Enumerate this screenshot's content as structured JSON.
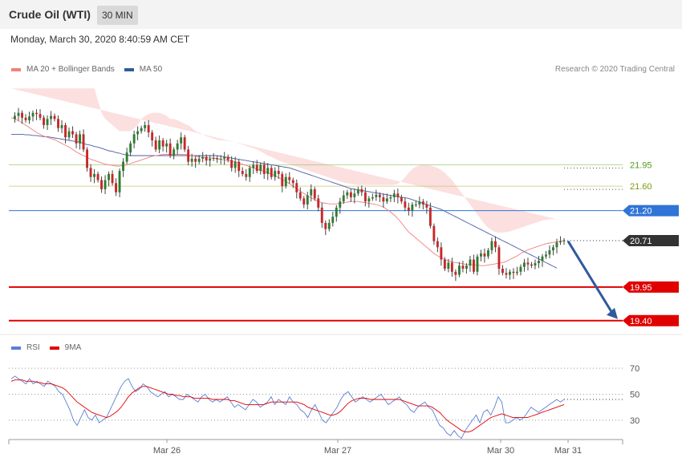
{
  "header": {
    "title": "Crude Oil (WTI)",
    "timeframe": "30 MIN",
    "datetime": "Monday, March 30, 2020 8:40:59 AM CET"
  },
  "legend_main": [
    {
      "label": "MA 20 + Bollinger Bands",
      "color": "#f08080"
    },
    {
      "label": "MA 50",
      "color": "#2f5a9e"
    }
  ],
  "legend_rsi": [
    {
      "label": "RSI",
      "color": "#5b7fd6"
    },
    {
      "label": "9MA",
      "color": "#e00000"
    }
  ],
  "credit": "Research © 2020 Trading Central",
  "colors": {
    "up": "#2e7d32",
    "down": "#c62828",
    "band": "#fbd7d7",
    "ma20": "#f08080",
    "ma50": "#4a5fa5",
    "rsi": "#5b7fd6",
    "rsima": "#e00000",
    "arrow": "#2f5a9e"
  },
  "chart_data": [
    {
      "type": "candlestick",
      "title": "Crude Oil (WTI)",
      "ylim": [
        19.2,
        23.4
      ],
      "x_ticks": [
        "Mar 26",
        "Mar 27",
        "Mar 30",
        "Mar 31"
      ],
      "levels": [
        {
          "label": "21.95",
          "value": 21.95,
          "style": "resistance-light",
          "color": "#9bc86a"
        },
        {
          "label": "21.60",
          "value": 21.6,
          "style": "resistance-light",
          "color": "#c9c26a"
        },
        {
          "label": "21.20",
          "value": 21.2,
          "style": "pivot",
          "color": "#2f74d6"
        },
        {
          "label": "20.71",
          "value": 20.71,
          "style": "current-price",
          "color": "#333333"
        },
        {
          "label": "19.95",
          "value": 19.95,
          "style": "support",
          "color": "#e00000"
        },
        {
          "label": "19.40",
          "value": 19.4,
          "style": "support",
          "color": "#e00000"
        }
      ],
      "forecast_arrow": {
        "from": 20.7,
        "to": 19.4
      },
      "series": {
        "close": [
          22.7,
          22.75,
          22.8,
          22.72,
          22.68,
          22.74,
          22.8,
          22.78,
          22.72,
          22.6,
          22.7,
          22.75,
          22.7,
          22.55,
          22.6,
          22.4,
          22.5,
          22.45,
          22.3,
          22.45,
          22.2,
          21.9,
          21.75,
          21.8,
          21.7,
          21.55,
          21.7,
          21.8,
          21.65,
          21.5,
          21.85,
          22.0,
          22.15,
          22.3,
          22.45,
          22.5,
          22.55,
          22.6,
          22.48,
          22.35,
          22.2,
          22.35,
          22.25,
          22.3,
          22.1,
          22.2,
          22.3,
          22.4,
          22.2,
          22.0,
          22.05,
          22.0,
          22.05,
          22.08,
          22.02,
          22.05,
          22.06,
          22.04,
          22.05,
          22.08,
          22.03,
          21.9,
          22.0,
          21.85,
          21.8,
          21.75,
          21.9,
          21.95,
          21.85,
          21.95,
          21.8,
          21.9,
          21.75,
          21.85,
          21.8,
          21.6,
          21.75,
          21.7,
          21.65,
          21.5,
          21.4,
          21.3,
          21.45,
          21.55,
          21.4,
          21.25,
          21.0,
          20.9,
          21.0,
          21.1,
          21.25,
          21.35,
          21.45,
          21.5,
          21.42,
          21.48,
          21.55,
          21.5,
          21.35,
          21.4,
          21.42,
          21.46,
          21.42,
          21.35,
          21.4,
          21.42,
          21.48,
          21.42,
          21.35,
          21.25,
          21.2,
          21.3,
          21.3,
          21.35,
          21.3,
          21.25,
          20.95,
          20.7,
          20.6,
          20.4,
          20.25,
          20.35,
          20.2,
          20.15,
          20.3,
          20.25,
          20.3,
          20.4,
          20.2,
          20.45,
          20.5,
          20.45,
          20.55,
          20.7,
          20.6,
          20.25,
          20.18,
          20.15,
          20.2,
          20.18,
          20.2,
          20.28,
          20.35,
          20.32,
          20.3,
          20.34,
          20.38,
          20.45,
          20.48,
          20.55,
          20.6,
          20.68,
          20.7,
          20.71
        ],
        "ma20": [
          22.72,
          22.7,
          22.67,
          22.64,
          22.6,
          22.56,
          22.52,
          22.48,
          22.45,
          22.42,
          22.4,
          22.38,
          22.36,
          22.33,
          22.3,
          22.27,
          22.24,
          22.2,
          22.16,
          22.13,
          22.1,
          22.07,
          22.04,
          22.02,
          22.0,
          21.98,
          21.96,
          21.95,
          21.94,
          21.93,
          21.93,
          21.94,
          21.95,
          21.97,
          21.99,
          22.01,
          22.03,
          22.05,
          22.07,
          22.09,
          22.1,
          22.11,
          22.12,
          22.12,
          22.12,
          22.12,
          22.12,
          22.12,
          22.12,
          22.11,
          22.1,
          22.09,
          22.08,
          22.07,
          22.07,
          22.06,
          22.06,
          22.05,
          22.04,
          22.03,
          22.02,
          22.01,
          22.0,
          21.98,
          21.96,
          21.94,
          21.92,
          21.9,
          21.88,
          21.86,
          21.84,
          21.82,
          21.8,
          21.77,
          21.74,
          21.71,
          21.68,
          21.64,
          21.6,
          21.56,
          21.52,
          21.48,
          21.44,
          21.41,
          21.38,
          21.35,
          21.33,
          21.32,
          21.31,
          21.31,
          21.31,
          21.32,
          21.33,
          21.34,
          21.35,
          21.35,
          21.35,
          21.34,
          21.33,
          21.32,
          21.31,
          21.3,
          21.28,
          21.26,
          21.22,
          21.18,
          21.13,
          21.07,
          21.0,
          20.92,
          20.85,
          20.8,
          20.75,
          20.7,
          20.65,
          20.6,
          20.55,
          20.5,
          20.46,
          20.43,
          20.4,
          20.38,
          20.36,
          20.35,
          20.34,
          20.33,
          20.32,
          20.32,
          20.31,
          20.31,
          20.3,
          20.3,
          20.31,
          20.32,
          20.33,
          20.34,
          20.35,
          20.37,
          20.4,
          20.43,
          20.46,
          20.5,
          20.53,
          20.56,
          20.58,
          20.6,
          20.62,
          20.64,
          20.66,
          20.67,
          20.68,
          20.69,
          20.7,
          20.71
        ],
        "ma50": [
          22.45,
          22.45,
          22.45,
          22.45,
          22.44,
          22.44,
          22.43,
          22.43,
          22.42,
          22.41,
          22.41,
          22.4,
          22.39,
          22.38,
          22.37,
          22.36,
          22.35,
          22.34,
          22.33,
          22.32,
          22.3,
          22.28,
          22.27,
          22.25,
          22.24,
          22.22,
          22.2,
          22.18,
          22.17,
          22.15,
          22.14,
          22.12,
          22.11,
          22.1,
          22.1,
          22.1,
          22.1,
          22.1,
          22.1,
          22.1,
          22.1,
          22.1,
          22.1,
          22.1,
          22.1,
          22.1,
          22.1,
          22.1,
          22.1,
          22.1,
          22.1,
          22.1,
          22.1,
          22.1,
          22.1,
          22.1,
          22.1,
          22.1,
          22.09,
          22.08,
          22.07,
          22.06,
          22.05,
          22.04,
          22.03,
          22.02,
          22.01,
          22.0,
          21.99,
          21.98,
          21.97,
          21.96,
          21.95,
          21.94,
          21.93,
          21.92,
          21.91,
          21.9,
          21.88,
          21.86,
          21.84,
          21.82,
          21.8,
          21.78,
          21.76,
          21.74,
          21.72,
          21.7,
          21.68,
          21.66,
          21.64,
          21.62,
          21.6,
          21.58,
          21.56,
          21.55,
          21.54,
          21.53,
          21.52,
          21.51,
          21.5,
          21.49,
          21.48,
          21.47,
          21.46,
          21.45,
          21.44,
          21.43,
          21.42,
          21.41,
          21.4,
          21.38,
          21.36,
          21.34,
          21.32,
          21.3,
          21.28,
          21.26,
          21.24,
          21.22,
          21.19,
          21.16,
          21.13,
          21.1,
          21.07,
          21.04,
          21.01,
          20.98,
          20.95,
          20.92,
          20.89,
          20.86,
          20.83,
          20.8,
          20.77,
          20.74,
          20.71,
          20.68,
          20.65,
          20.62,
          20.59,
          20.56,
          20.53,
          20.5,
          20.47,
          20.44,
          20.41,
          20.38,
          20.35,
          20.32,
          20.29,
          20.26
        ],
        "bb_upper": [
          23.2,
          23.2,
          23.2,
          23.2,
          23.2,
          23.2,
          23.2,
          23.2,
          23.2,
          23.2,
          23.2,
          23.2,
          23.2,
          23.2,
          23.2,
          23.2,
          23.2,
          23.2,
          23.2,
          23.2,
          23.2,
          23.2,
          23.2,
          23.2,
          23.0,
          22.8,
          22.7,
          22.65,
          22.6,
          22.55,
          22.5,
          22.5,
          22.5,
          22.5,
          22.55,
          22.6,
          22.7,
          22.75,
          22.78,
          22.8,
          22.8,
          22.8,
          22.78,
          22.75,
          22.7,
          22.7,
          22.68,
          22.65,
          22.62,
          22.6,
          22.55,
          22.5,
          22.48,
          22.45,
          22.42,
          22.4,
          22.38,
          22.36,
          22.35,
          22.35,
          22.34,
          22.33,
          22.32,
          22.3,
          22.28,
          22.26,
          22.24,
          22.22,
          22.2,
          22.17,
          22.14,
          22.1,
          22.08,
          22.05,
          22.02,
          22.0,
          21.98,
          21.96,
          21.94,
          21.92,
          21.9,
          21.88,
          21.86,
          21.84,
          21.82,
          21.8,
          21.78,
          21.76,
          21.74,
          21.72,
          21.7,
          21.68,
          21.66,
          21.65,
          21.64,
          21.63,
          21.62,
          21.62,
          21.62,
          21.62,
          21.62,
          21.62,
          21.62,
          21.62,
          21.62,
          21.62,
          21.62,
          21.64,
          21.68,
          21.75,
          21.82,
          21.88,
          21.92,
          21.94,
          21.95,
          21.95,
          21.94,
          21.92,
          21.9,
          21.86,
          21.82,
          21.76,
          21.7,
          21.62,
          21.54,
          21.46,
          21.38,
          21.3,
          21.22,
          21.14,
          21.06,
          20.98,
          20.92,
          20.88,
          20.85,
          20.84,
          20.84,
          20.85,
          20.86,
          20.88,
          20.9,
          20.92,
          20.94,
          20.96,
          20.98,
          21.0,
          21.02,
          21.04,
          21.05,
          21.06,
          21.06,
          21.06
        ],
        "bb_lower": [
          22.0,
          22.0,
          22.0,
          22.0,
          22.0,
          22.0,
          22.0,
          22.0,
          21.95,
          21.9,
          21.85,
          21.8,
          21.75,
          21.7,
          21.65,
          21.6,
          21.55,
          21.5,
          21.45,
          21.4,
          21.35,
          21.3,
          21.3,
          21.3,
          21.3,
          21.3,
          21.3,
          21.3,
          21.3,
          21.3,
          21.32,
          21.35,
          21.38,
          21.42,
          21.45,
          21.5,
          21.55,
          21.6,
          21.65,
          21.7,
          21.75,
          21.8,
          21.82,
          21.84,
          21.86,
          21.86,
          21.86,
          21.86,
          21.86,
          21.86,
          21.85,
          21.84,
          21.83,
          21.82,
          21.81,
          21.8,
          21.78,
          21.76,
          21.74,
          21.72,
          21.7,
          21.68,
          21.66,
          21.64,
          21.62,
          21.6,
          21.58,
          21.56,
          21.54,
          21.52,
          21.5,
          21.48,
          21.45,
          21.42,
          21.4,
          21.38,
          21.35,
          21.32,
          21.3,
          21.27,
          21.24,
          21.22,
          21.2,
          21.18,
          21.15,
          21.12,
          21.1,
          21.08,
          21.06,
          21.05,
          21.05,
          21.05,
          21.05,
          21.05,
          21.06,
          21.08,
          21.1,
          21.1,
          21.1,
          21.1,
          21.1,
          21.1,
          21.08,
          21.06,
          21.04,
          21.02,
          20.98,
          20.94,
          20.9,
          20.85,
          20.8,
          20.75,
          20.7,
          20.65,
          20.6,
          20.55,
          20.48,
          20.4,
          20.3,
          20.2,
          20.1,
          20.0,
          19.9,
          19.82,
          19.76,
          19.72,
          19.7,
          19.7,
          19.7,
          19.7,
          19.7,
          19.7,
          19.7,
          19.72,
          19.74,
          19.76,
          19.78,
          19.78,
          19.8,
          19.82,
          19.84,
          19.86,
          19.88,
          19.9,
          19.92,
          19.94,
          19.96,
          19.98,
          20.0,
          20.02,
          20.04,
          20.05
        ]
      }
    },
    {
      "type": "line",
      "title": "RSI",
      "ylim": [
        20,
        80
      ],
      "y_ticks": [
        30,
        50,
        70
      ],
      "series": [
        {
          "name": "RSI",
          "values": [
            62,
            64,
            62,
            60,
            58,
            62,
            58,
            60,
            58,
            56,
            60,
            58,
            56,
            52,
            50,
            44,
            38,
            30,
            26,
            32,
            38,
            32,
            30,
            34,
            28,
            30,
            32,
            38,
            44,
            50,
            56,
            60,
            62,
            56,
            52,
            54,
            58,
            56,
            52,
            50,
            48,
            50,
            52,
            48,
            50,
            48,
            46,
            46,
            50,
            48,
            46,
            44,
            48,
            50,
            46,
            44,
            46,
            44,
            46,
            48,
            44,
            40,
            42,
            40,
            38,
            42,
            46,
            44,
            40,
            42,
            44,
            48,
            42,
            46,
            44,
            42,
            48,
            44,
            42,
            38,
            36,
            32,
            38,
            42,
            36,
            30,
            28,
            32,
            36,
            40,
            46,
            50,
            52,
            48,
            44,
            46,
            48,
            46,
            44,
            46,
            48,
            50,
            46,
            42,
            44,
            46,
            48,
            44,
            42,
            38,
            36,
            40,
            42,
            44,
            40,
            38,
            32,
            26,
            24,
            20,
            18,
            22,
            18,
            16,
            22,
            26,
            30,
            34,
            28,
            36,
            38,
            34,
            40,
            48,
            44,
            28,
            28,
            30,
            32,
            30,
            32,
            36,
            40,
            38,
            36,
            38,
            40,
            42,
            44,
            46,
            44,
            46
          ]
        },
        {
          "name": "9MA",
          "values": [
            60,
            61,
            61,
            61,
            60,
            60,
            60,
            59,
            59,
            58,
            58,
            58,
            57,
            56,
            55,
            53,
            50,
            47,
            44,
            42,
            40,
            38,
            36,
            35,
            34,
            33,
            32,
            33,
            35,
            37,
            40,
            44,
            48,
            51,
            53,
            55,
            56,
            56,
            55,
            54,
            53,
            52,
            51,
            50,
            50,
            49,
            49,
            48,
            48,
            48,
            47,
            47,
            47,
            47,
            47,
            46,
            46,
            46,
            46,
            46,
            45,
            45,
            44,
            43,
            42,
            42,
            42,
            42,
            42,
            42,
            43,
            44,
            44,
            44,
            44,
            44,
            44,
            44,
            44,
            43,
            42,
            40,
            39,
            38,
            37,
            36,
            35,
            34,
            34,
            35,
            37,
            40,
            43,
            45,
            46,
            47,
            47,
            47,
            46,
            46,
            46,
            46,
            46,
            46,
            46,
            46,
            46,
            45,
            44,
            43,
            42,
            41,
            41,
            41,
            41,
            40,
            38,
            36,
            33,
            30,
            28,
            26,
            24,
            22,
            21,
            21,
            22,
            24,
            26,
            28,
            30,
            32,
            33,
            34,
            35,
            34,
            33,
            32,
            32,
            32,
            32,
            32,
            33,
            34,
            35,
            36,
            37,
            38,
            39,
            40,
            41,
            42
          ]
        }
      ]
    }
  ]
}
